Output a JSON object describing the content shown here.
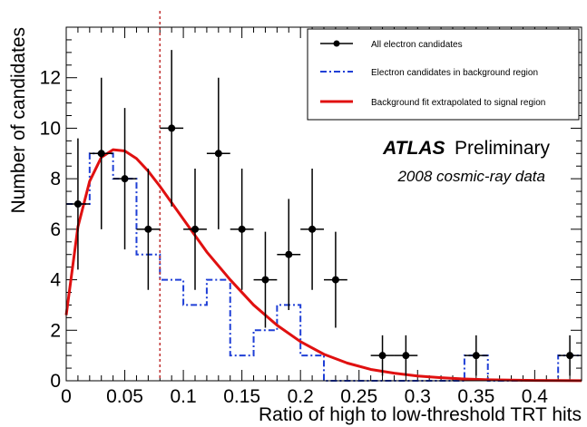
{
  "chart_data": {
    "type": "scatter",
    "xlabel": "Ratio of high to low-threshold TRT hits",
    "ylabel": "Number of candidates",
    "xlim": [
      0,
      0.44
    ],
    "ylim": [
      0,
      14
    ],
    "x_ticks": [
      "0",
      "0.05",
      "0.1",
      "0.15",
      "0.2",
      "0.25",
      "0.3",
      "0.35",
      "0.4"
    ],
    "y_ticks": [
      "0",
      "2",
      "4",
      "6",
      "8",
      "10",
      "12"
    ],
    "bin_width": 0.02,
    "cut_line_x": 0.08,
    "annotation": {
      "experiment": "ATLAS",
      "status": "Preliminary",
      "dataset": "2008 cosmic-ray data"
    },
    "legend_position": "top-right",
    "series": [
      {
        "name": "All electron candidates",
        "style": "points-with-error-bars",
        "color": "#000000",
        "x": [
          0.01,
          0.03,
          0.05,
          0.07,
          0.09,
          0.11,
          0.13,
          0.15,
          0.17,
          0.19,
          0.21,
          0.23,
          0.27,
          0.29,
          0.35,
          0.43
        ],
        "y": [
          7,
          9,
          8,
          6,
          10,
          6,
          9,
          6,
          4,
          5,
          6,
          4,
          1,
          1,
          1,
          1
        ],
        "err_low": [
          2.6,
          3.0,
          2.8,
          2.4,
          3.1,
          2.4,
          3.0,
          2.4,
          1.9,
          2.2,
          2.4,
          1.9,
          0.8,
          0.8,
          0.8,
          0.8
        ],
        "err_high": [
          2.6,
          3.0,
          2.8,
          2.4,
          3.1,
          2.4,
          3.0,
          2.4,
          1.9,
          2.2,
          2.4,
          1.9,
          0.8,
          0.8,
          0.8,
          0.8
        ]
      },
      {
        "name": "Electron candidates in background region",
        "style": "step-histogram",
        "color": "#1f3fd6",
        "bin_edges": [
          0,
          0.02,
          0.04,
          0.06,
          0.08,
          0.1,
          0.12,
          0.14,
          0.16,
          0.18,
          0.2,
          0.22,
          0.24,
          0.26,
          0.28,
          0.3,
          0.32,
          0.34,
          0.36,
          0.38,
          0.4,
          0.42,
          0.44
        ],
        "values": [
          7,
          9,
          8,
          5,
          4,
          3,
          4,
          1,
          2,
          3,
          1,
          0,
          0,
          0,
          0,
          0,
          0,
          1,
          0,
          0,
          0,
          1
        ]
      },
      {
        "name": "Background fit extrapolated to signal region",
        "style": "line",
        "color": "#e01010",
        "x": [
          0.0,
          0.01,
          0.02,
          0.03,
          0.04,
          0.05,
          0.06,
          0.07,
          0.08,
          0.09,
          0.1,
          0.12,
          0.14,
          0.16,
          0.18,
          0.2,
          0.22,
          0.24,
          0.26,
          0.28,
          0.3,
          0.32,
          0.34,
          0.36,
          0.38,
          0.4,
          0.42,
          0.44
        ],
        "y": [
          2.6,
          6.1,
          7.9,
          8.85,
          9.15,
          9.1,
          8.8,
          8.3,
          7.7,
          7.05,
          6.4,
          5.1,
          4.0,
          3.0,
          2.2,
          1.55,
          1.05,
          0.7,
          0.45,
          0.3,
          0.19,
          0.12,
          0.07,
          0.04,
          0.025,
          0.015,
          0.009,
          0.005
        ]
      }
    ]
  }
}
